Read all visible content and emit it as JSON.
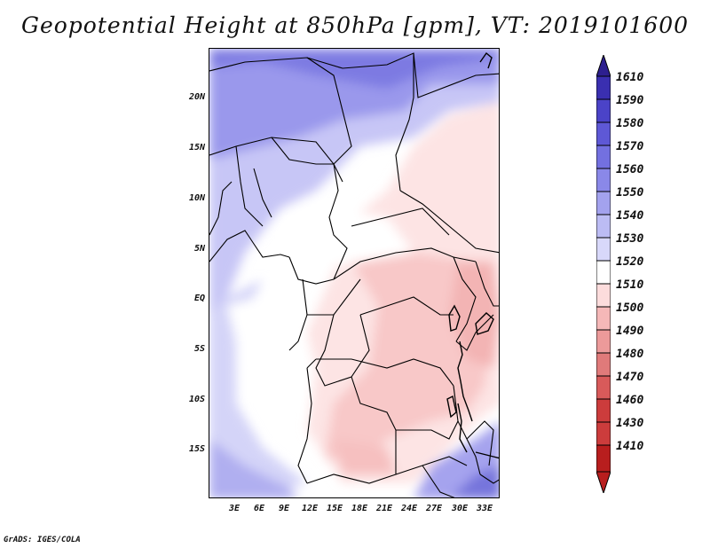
{
  "title": "Geopotential Height at 850hPa [gpm], VT: 2019101600",
  "credit": "GrADS: IGES/COLA",
  "map": {
    "lat_labels": [
      "20N",
      "15N",
      "10N",
      "5N",
      "EQ",
      "5S",
      "10S",
      "15S"
    ],
    "lon_labels": [
      "3E",
      "6E",
      "9E",
      "12E",
      "15E",
      "18E",
      "21E",
      "24E",
      "27E",
      "30E",
      "33E"
    ]
  },
  "colorbar": {
    "levels": [
      "1610",
      "1590",
      "1580",
      "1570",
      "1560",
      "1550",
      "1540",
      "1530",
      "1520",
      "1510",
      "1500",
      "1490",
      "1480",
      "1470",
      "1460",
      "1430",
      "1410"
    ],
    "colors": [
      "#2d1f8f",
      "#3a2fb0",
      "#4b43c8",
      "#5e58d6",
      "#7370e0",
      "#8a88e8",
      "#a3a2ee",
      "#bcbcf4",
      "#d8d8fa",
      "#ffffff",
      "#fcdcdc",
      "#f5b8b8",
      "#ec9a9a",
      "#e07a7a",
      "#d85a5a",
      "#cc3c3c",
      "#b81e1e"
    ]
  }
}
